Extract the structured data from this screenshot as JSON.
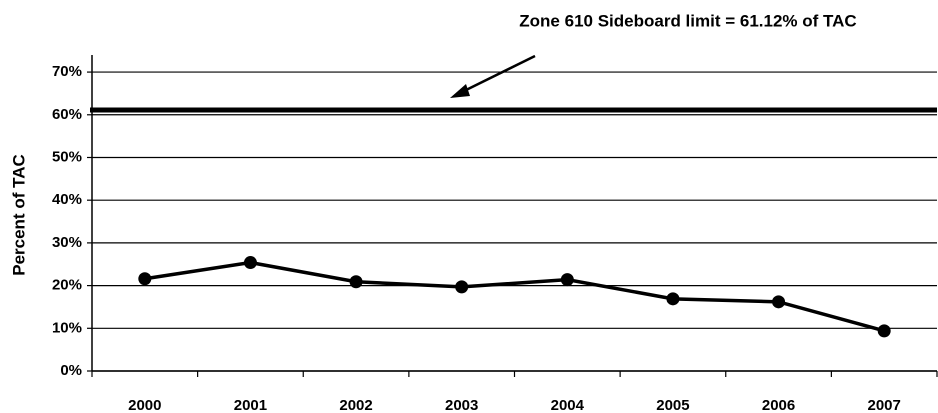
{
  "chart_data": {
    "type": "line",
    "annotation": "Zone 610 Sideboard limit = 61.12% of TAC",
    "y_label": "Percent of TAC",
    "categories": [
      "2000",
      "2001",
      "2002",
      "2003",
      "2004",
      "2005",
      "2006",
      "2007"
    ],
    "values": [
      21.6,
      25.4,
      20.9,
      19.7,
      21.4,
      16.9,
      16.2,
      9.4
    ],
    "color": "#000000",
    "reference_line": 61.12,
    "ylim": [
      0,
      74
    ],
    "yticks": [
      {
        "value": 0,
        "label": "0%"
      },
      {
        "value": 10,
        "label": "10%"
      },
      {
        "value": 20,
        "label": "20%"
      },
      {
        "value": 30,
        "label": "30%"
      },
      {
        "value": 40,
        "label": "40%"
      },
      {
        "value": 50,
        "label": "50%"
      },
      {
        "value": 60,
        "label": "60%"
      },
      {
        "value": 70,
        "label": "70%"
      }
    ],
    "grid": true
  }
}
